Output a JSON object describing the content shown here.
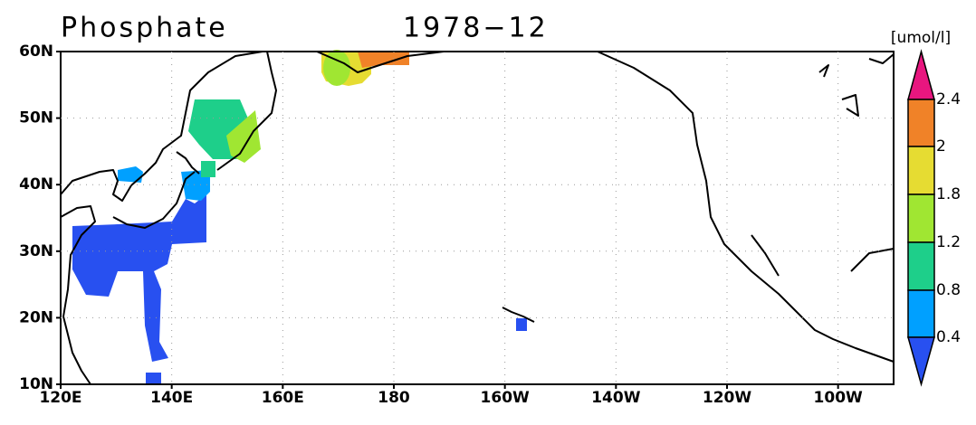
{
  "title": "Phosphate",
  "period": "1978−12",
  "unit": "[umol/l]",
  "lat_labels": [
    "60N",
    "50N",
    "40N",
    "30N",
    "20N",
    "10N"
  ],
  "lon_labels": [
    "120E",
    "140E",
    "160E",
    "180",
    "160W",
    "140W",
    "120W",
    "100W"
  ],
  "colorbar": {
    "labels": [
      "2.4",
      "2",
      "1.8",
      "1.2",
      "0.8",
      "0.4"
    ],
    "colors": [
      "#e8167f",
      "#f08228",
      "#e6dc32",
      "#a0e632",
      "#1ecf8a",
      "#00a0ff",
      "#2850f0"
    ]
  }
}
